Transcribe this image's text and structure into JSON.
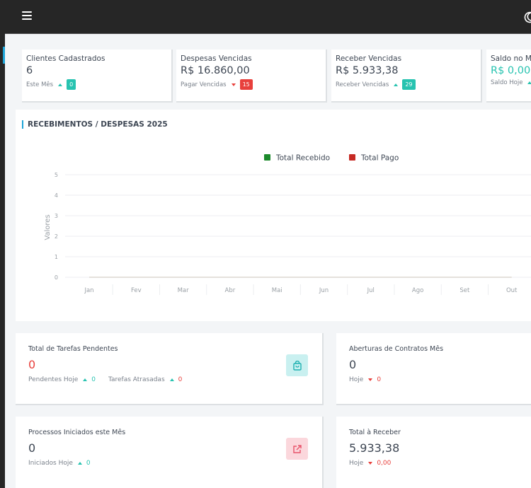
{
  "stats": [
    {
      "label": "Clientes Cadastrados",
      "value": "6",
      "sub_label": "Este Mês",
      "badge": "0"
    },
    {
      "label": "Despesas Vencidas",
      "value": "R$ 16.860,00",
      "sub_label": "Pagar Vencidas",
      "badge": "15"
    },
    {
      "label": "Receber Vencidas",
      "value": "R$ 5.933,38",
      "sub_label": "Receber Vencidas",
      "badge": "29"
    },
    {
      "label": "Saldo no Mês",
      "value": "R$ 0,00",
      "sub_label": "Saldo Hoje",
      "badge": ""
    }
  ],
  "chart_data": {
    "type": "line",
    "title": "RECEBIMENTOS / DESPESAS 2025",
    "ylabel": "Valores",
    "xlabel": "",
    "ylim": [
      0,
      5
    ],
    "y_ticks": [
      "0",
      "1",
      "2",
      "3",
      "4",
      "5"
    ],
    "categories": [
      "Jan",
      "Fev",
      "Mar",
      "Abr",
      "Mai",
      "Jun",
      "Jul",
      "Ago",
      "Set",
      "Out"
    ],
    "series": [
      {
        "name": "Total Recebido",
        "color": "#1c8a2c",
        "values": [
          0,
          0,
          0,
          0,
          0,
          0,
          0,
          0,
          0,
          0
        ]
      },
      {
        "name": "Total Pago",
        "color": "#c62a24",
        "values": [
          0,
          0,
          0,
          0,
          0,
          0,
          0,
          0,
          0,
          0
        ]
      }
    ],
    "legend_position": "top-center",
    "grid": true
  },
  "tasks": {
    "label": "Total de Tarefas Pendentes",
    "value": "0",
    "sub1_label": "Pendentes Hoje",
    "sub1_value": "0",
    "sub2_label": "Tarefas Atrasadas",
    "sub2_value": "0",
    "icon": "shopping-bag-icon"
  },
  "contracts": {
    "label": "Aberturas de Contratos Mês",
    "value": "0",
    "sub_label": "Hoje",
    "sub_value": "0"
  },
  "processes": {
    "label": "Processos Iniciados este Mês",
    "value": "0",
    "sub_label": "Iniciados Hoje",
    "sub_value": "0",
    "icon": "external-link-icon"
  },
  "receivable": {
    "label": "Total à Receber",
    "value": "5.933,38",
    "sub_label": "Hoje",
    "sub_value": "0,00"
  }
}
